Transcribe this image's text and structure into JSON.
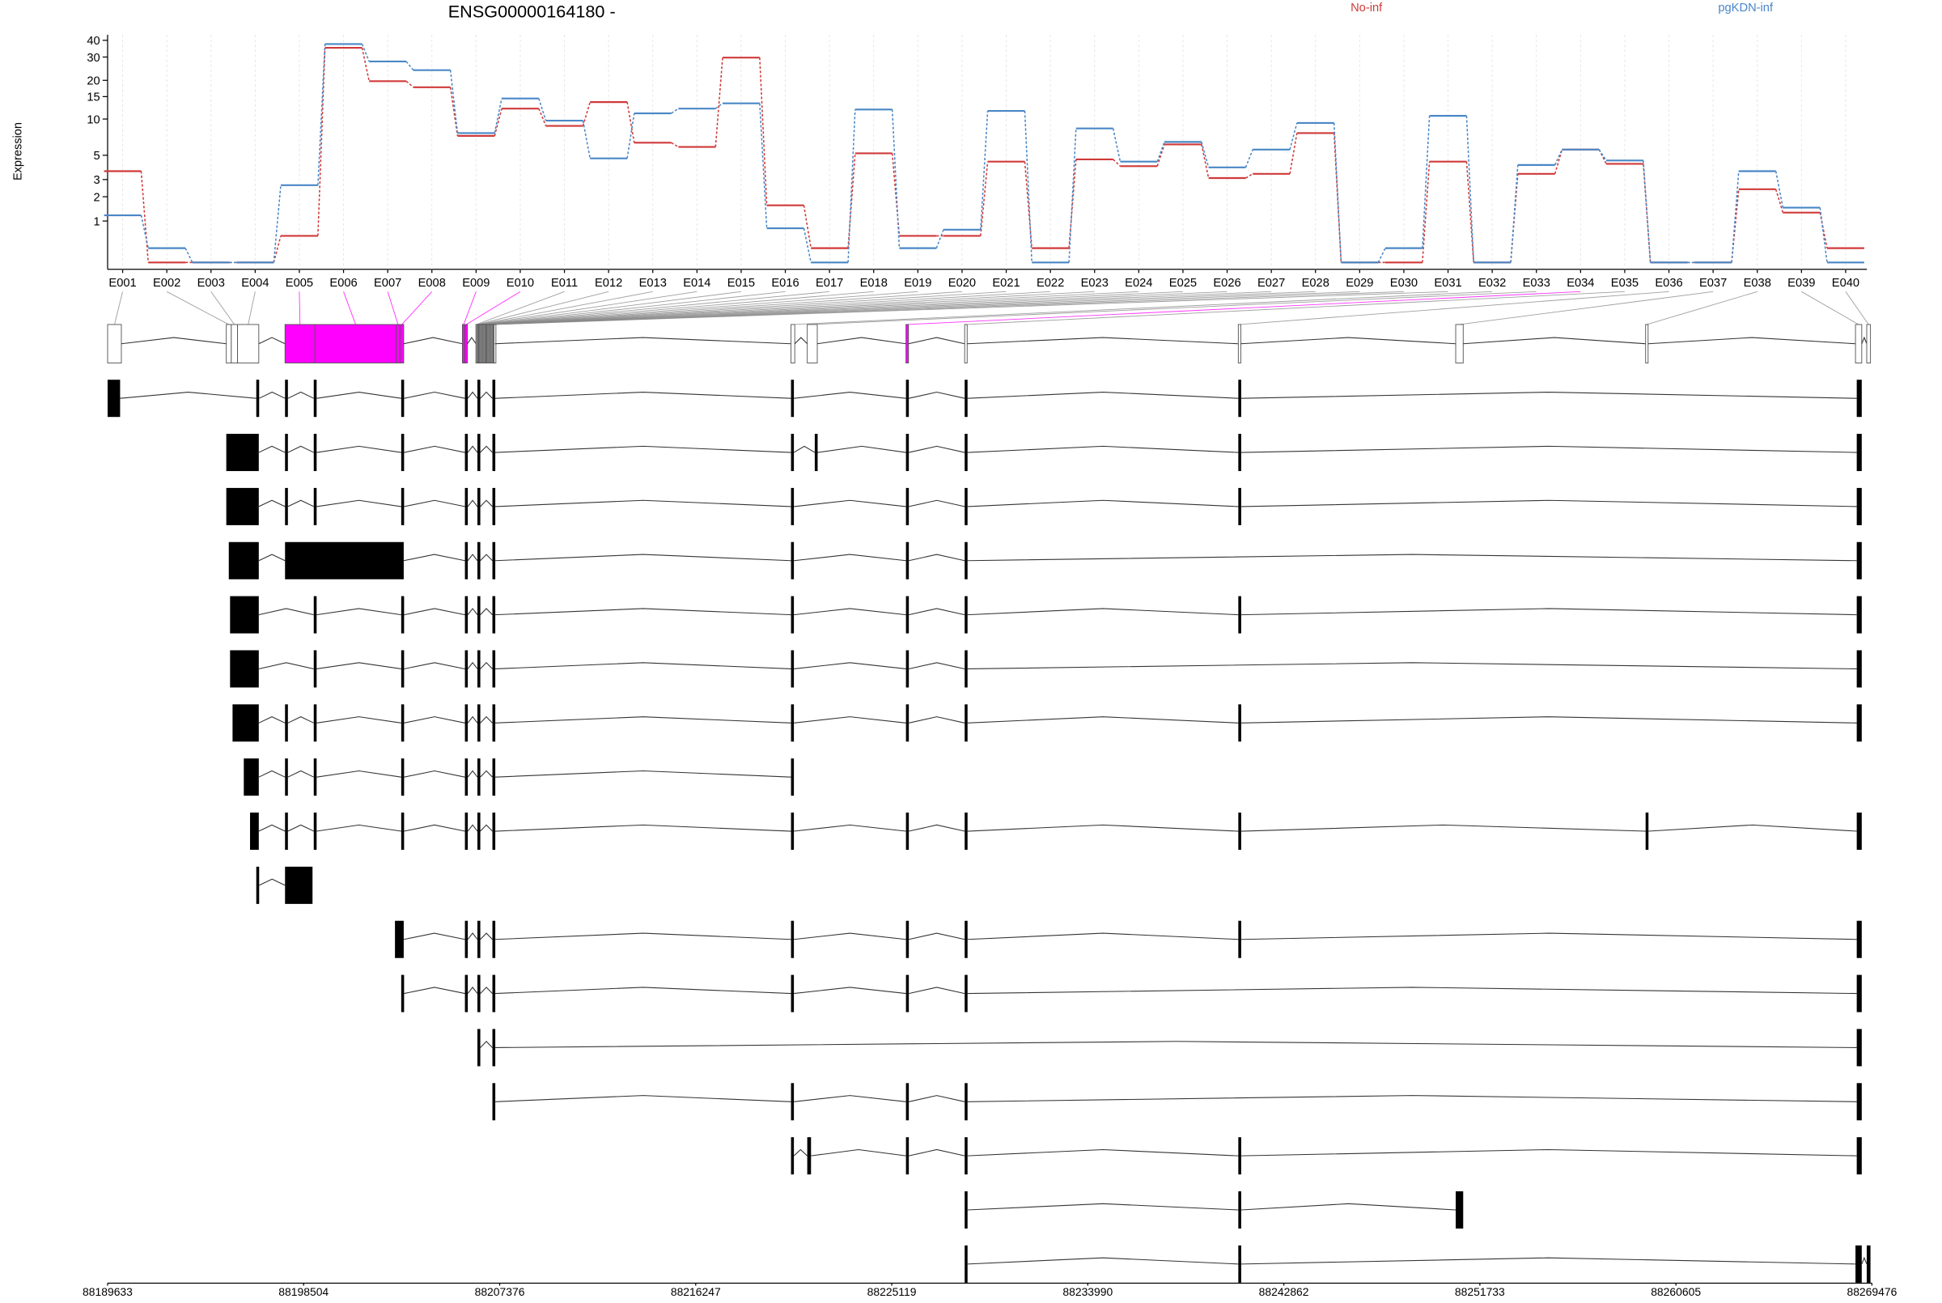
{
  "chart_data": {
    "type": "line",
    "title": "ENSG00000164180 -",
    "y_label": "Expression",
    "yscale": "log1p",
    "ylim": [
      0,
      44
    ],
    "yticks": [
      1,
      2,
      3,
      5,
      10,
      15,
      20,
      30,
      40
    ],
    "grid": true,
    "legend": "top",
    "categories": [
      "E001",
      "E002",
      "E003",
      "E004",
      "E005",
      "E006",
      "E007",
      "E008",
      "E009",
      "E010",
      "E011",
      "E012",
      "E013",
      "E014",
      "E015",
      "E016",
      "E017",
      "E018",
      "E019",
      "E020",
      "E021",
      "E022",
      "E023",
      "E024",
      "E025",
      "E026",
      "E027",
      "E028",
      "E029",
      "E030",
      "E031",
      "E032",
      "E033",
      "E034",
      "E035",
      "E036",
      "E037",
      "E038",
      "E039",
      "E040"
    ],
    "series": [
      {
        "name": "No-inf",
        "color": "#d03a3a",
        "values": [
          3.6,
          0,
          0,
          0,
          0.56,
          35.2,
          19.7,
          17.7,
          7.3,
          12.1,
          8.8,
          13.6,
          6.4,
          5.9,
          29.7,
          1.6,
          0.27,
          5.2,
          0.56,
          0.56,
          4.4,
          0.27,
          4.6,
          4.0,
          6.2,
          3.1,
          3.4,
          7.7,
          0,
          0,
          4.4,
          0,
          3.4,
          5.6,
          4.2,
          0,
          0,
          2.4,
          1.3,
          0.27
        ]
      },
      {
        "name": "pgKDN-inf",
        "color": "#4a87c6",
        "values": [
          1.2,
          0.27,
          0,
          0,
          2.64,
          37.5,
          27.8,
          23.9,
          7.7,
          14.5,
          9.7,
          4.7,
          11.1,
          12.1,
          13.3,
          0.77,
          0,
          11.9,
          0.27,
          0.73,
          11.6,
          0,
          8.4,
          4.4,
          6.5,
          3.9,
          5.6,
          9.3,
          0,
          0.27,
          10.6,
          0,
          4.1,
          5.6,
          4.5,
          0,
          0,
          3.6,
          1.5,
          0
        ]
      }
    ]
  },
  "gene_model": {
    "xlim": [
      88189633,
      88269476
    ],
    "xticks": [
      88189633,
      88198504,
      88207376,
      88216247,
      88225119,
      88233990,
      88242862,
      88251733,
      88260605,
      88269476
    ],
    "highlight_color": "#ff00ff",
    "exons": [
      {
        "start": 88189633,
        "end": 88190255,
        "significant": false
      },
      {
        "start": 88195004,
        "end": 88195230,
        "significant": false
      },
      {
        "start": 88195230,
        "end": 88195513,
        "significant": false
      },
      {
        "start": 88195513,
        "end": 88196474,
        "significant": false
      },
      {
        "start": 88197662,
        "end": 88199019,
        "significant": true
      },
      {
        "start": 88199019,
        "end": 88202694,
        "significant": true
      },
      {
        "start": 88202694,
        "end": 88202864,
        "significant": true
      },
      {
        "start": 88202864,
        "end": 88203033,
        "significant": true
      },
      {
        "start": 88205690,
        "end": 88205803,
        "significant": true
      },
      {
        "start": 88205803,
        "end": 88205916,
        "significant": true
      },
      {
        "start": 88206300,
        "end": 88206341,
        "significant": false
      },
      {
        "start": 88206341,
        "end": 88206382,
        "significant": false
      },
      {
        "start": 88206382,
        "end": 88206423,
        "significant": false
      },
      {
        "start": 88206423,
        "end": 88206464,
        "significant": false
      },
      {
        "start": 88206464,
        "end": 88206505,
        "significant": false
      },
      {
        "start": 88206505,
        "end": 88206546,
        "significant": false
      },
      {
        "start": 88206546,
        "end": 88206587,
        "significant": false
      },
      {
        "start": 88206587,
        "end": 88206628,
        "significant": false
      },
      {
        "start": 88206628,
        "end": 88206669,
        "significant": false
      },
      {
        "start": 88206669,
        "end": 88206710,
        "significant": false
      },
      {
        "start": 88206710,
        "end": 88206751,
        "significant": false
      },
      {
        "start": 88206751,
        "end": 88206792,
        "significant": false
      },
      {
        "start": 88206792,
        "end": 88206833,
        "significant": false
      },
      {
        "start": 88206833,
        "end": 88206874,
        "significant": false
      },
      {
        "start": 88206874,
        "end": 88206915,
        "significant": false
      },
      {
        "start": 88206915,
        "end": 88206956,
        "significant": false
      },
      {
        "start": 88206956,
        "end": 88206997,
        "significant": false
      },
      {
        "start": 88206997,
        "end": 88207038,
        "significant": false
      },
      {
        "start": 88207038,
        "end": 88207079,
        "significant": false
      },
      {
        "start": 88207079,
        "end": 88207120,
        "significant": false
      },
      {
        "start": 88207120,
        "end": 88207160,
        "significant": false
      },
      {
        "start": 88220560,
        "end": 88220730,
        "significant": false
      },
      {
        "start": 88221295,
        "end": 88221748,
        "significant": false
      },
      {
        "start": 88225762,
        "end": 88225875,
        "significant": true
      },
      {
        "start": 88228419,
        "end": 88228532,
        "significant": false
      },
      {
        "start": 88240802,
        "end": 88240915,
        "significant": false
      },
      {
        "start": 88250640,
        "end": 88250979,
        "significant": false
      },
      {
        "start": 88259234,
        "end": 88259347,
        "significant": false
      },
      {
        "start": 88268732,
        "end": 88269015,
        "significant": false
      },
      {
        "start": 88269241,
        "end": 88269410,
        "significant": false
      }
    ]
  },
  "transcripts": [
    {
      "exons": [
        [
          88189633,
          88190198
        ],
        [
          88196361,
          88196491
        ],
        [
          88197662,
          88197792
        ],
        [
          88198962,
          88199092
        ],
        [
          88202920,
          88203050
        ],
        [
          88205803,
          88205933
        ],
        [
          88206369,
          88206499
        ],
        [
          88207047,
          88207177
        ],
        [
          88220560,
          88220690
        ],
        [
          88225762,
          88225892
        ],
        [
          88228419,
          88228549
        ],
        [
          88240802,
          88240932
        ],
        [
          88268789,
          88269015
        ]
      ]
    },
    {
      "exons": [
        [
          88195004,
          88196474
        ],
        [
          88197662,
          88197792
        ],
        [
          88198962,
          88199092
        ],
        [
          88202920,
          88203050
        ],
        [
          88205803,
          88205933
        ],
        [
          88206369,
          88206499
        ],
        [
          88207047,
          88207177
        ],
        [
          88220560,
          88220690
        ],
        [
          88221635,
          88221765
        ],
        [
          88225762,
          88225892
        ],
        [
          88228419,
          88228549
        ],
        [
          88240802,
          88240932
        ],
        [
          88268789,
          88269015
        ]
      ]
    },
    {
      "exons": [
        [
          88195004,
          88196474
        ],
        [
          88197662,
          88197792
        ],
        [
          88198962,
          88199092
        ],
        [
          88202920,
          88203050
        ],
        [
          88205803,
          88205933
        ],
        [
          88206369,
          88206499
        ],
        [
          88207047,
          88207177
        ],
        [
          88220560,
          88220690
        ],
        [
          88225762,
          88225892
        ],
        [
          88228419,
          88228549
        ],
        [
          88240802,
          88240932
        ],
        [
          88268789,
          88269015
        ]
      ]
    },
    {
      "exons": [
        [
          88195117,
          88196474
        ],
        [
          88197662,
          88203033
        ],
        [
          88205803,
          88205933
        ],
        [
          88206369,
          88206499
        ],
        [
          88207047,
          88207177
        ],
        [
          88220560,
          88220690
        ],
        [
          88225762,
          88225892
        ],
        [
          88228419,
          88228549
        ],
        [
          88268789,
          88269015
        ]
      ]
    },
    {
      "exons": [
        [
          88195174,
          88196474
        ],
        [
          88198962,
          88199092
        ],
        [
          88202920,
          88203050
        ],
        [
          88205803,
          88205933
        ],
        [
          88206369,
          88206499
        ],
        [
          88207047,
          88207177
        ],
        [
          88220560,
          88220690
        ],
        [
          88225762,
          88225892
        ],
        [
          88228419,
          88228549
        ],
        [
          88240802,
          88240932
        ],
        [
          88268789,
          88269015
        ]
      ]
    },
    {
      "exons": [
        [
          88195174,
          88196474
        ],
        [
          88198962,
          88199092
        ],
        [
          88202920,
          88203050
        ],
        [
          88205803,
          88205933
        ],
        [
          88206369,
          88206499
        ],
        [
          88207047,
          88207177
        ],
        [
          88220560,
          88220690
        ],
        [
          88225762,
          88225892
        ],
        [
          88228419,
          88228549
        ],
        [
          88268789,
          88269015
        ]
      ]
    },
    {
      "exons": [
        [
          88195287,
          88196474
        ],
        [
          88197662,
          88197792
        ],
        [
          88198962,
          88199092
        ],
        [
          88202920,
          88203050
        ],
        [
          88205803,
          88205933
        ],
        [
          88206369,
          88206499
        ],
        [
          88207047,
          88207177
        ],
        [
          88220560,
          88220690
        ],
        [
          88225762,
          88225892
        ],
        [
          88228419,
          88228549
        ],
        [
          88240802,
          88240932
        ],
        [
          88268789,
          88269015
        ]
      ]
    },
    {
      "exons": [
        [
          88195796,
          88196474
        ],
        [
          88197662,
          88197792
        ],
        [
          88198962,
          88199092
        ],
        [
          88202920,
          88203050
        ],
        [
          88205803,
          88205933
        ],
        [
          88206369,
          88206499
        ],
        [
          88207047,
          88207177
        ],
        [
          88220560,
          88220690
        ]
      ]
    },
    {
      "exons": [
        [
          88196079,
          88196474
        ],
        [
          88197662,
          88197792
        ],
        [
          88198962,
          88199092
        ],
        [
          88202920,
          88203050
        ],
        [
          88205803,
          88205933
        ],
        [
          88206369,
          88206499
        ],
        [
          88207047,
          88207177
        ],
        [
          88220560,
          88220690
        ],
        [
          88225762,
          88225892
        ],
        [
          88228419,
          88228549
        ],
        [
          88240802,
          88240932
        ],
        [
          88259234,
          88259364
        ],
        [
          88268789,
          88269015
        ]
      ]
    },
    {
      "exons": [
        [
          88196361,
          88196491
        ],
        [
          88197662,
          88198906
        ]
      ]
    },
    {
      "exons": [
        [
          88202637,
          88203033
        ],
        [
          88205803,
          88205933
        ],
        [
          88206369,
          88206499
        ],
        [
          88207047,
          88207177
        ],
        [
          88220560,
          88220690
        ],
        [
          88225762,
          88225892
        ],
        [
          88228419,
          88228549
        ],
        [
          88240802,
          88240932
        ],
        [
          88268789,
          88269015
        ]
      ]
    },
    {
      "exons": [
        [
          88202920,
          88203050
        ],
        [
          88205803,
          88205933
        ],
        [
          88206369,
          88206499
        ],
        [
          88207047,
          88207177
        ],
        [
          88220560,
          88220690
        ],
        [
          88225762,
          88225892
        ],
        [
          88228419,
          88228549
        ],
        [
          88268789,
          88269015
        ]
      ]
    },
    {
      "exons": [
        [
          88206369,
          88206499
        ],
        [
          88207047,
          88207177
        ],
        [
          88268789,
          88269015
        ]
      ]
    },
    {
      "exons": [
        [
          88207047,
          88207177
        ],
        [
          88220560,
          88220690
        ],
        [
          88225762,
          88225892
        ],
        [
          88228419,
          88228549
        ],
        [
          88268789,
          88269015
        ]
      ]
    },
    {
      "exons": [
        [
          88220560,
          88220690
        ],
        [
          88221295,
          88221465
        ],
        [
          88225762,
          88225892
        ],
        [
          88228419,
          88228549
        ],
        [
          88240802,
          88240932
        ],
        [
          88268789,
          88269015
        ]
      ]
    },
    {
      "exons": [
        [
          88228419,
          88228549
        ],
        [
          88240802,
          88240932
        ],
        [
          88250640,
          88250979
        ]
      ]
    },
    {
      "exons": [
        [
          88228419,
          88228549
        ],
        [
          88240802,
          88240932
        ],
        [
          88268732,
          88269015
        ],
        [
          88269241,
          88269410
        ]
      ]
    }
  ]
}
